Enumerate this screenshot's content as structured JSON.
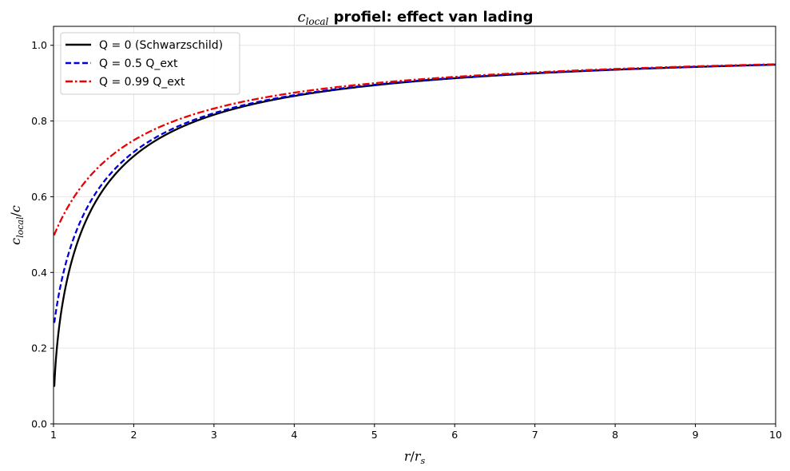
{
  "chart_data": {
    "type": "line",
    "title": {
      "math_main": "c",
      "math_sub": "local",
      "rest": " profiel: effect van lading"
    },
    "xlabel": {
      "main": "r",
      "slash": "/",
      "main2": "r",
      "sub2": "s"
    },
    "ylabel": {
      "main": "c",
      "sub": "local",
      "slash": "/",
      "main2": "c"
    },
    "xlim": [
      1,
      10
    ],
    "ylim": [
      0,
      1.05
    ],
    "xticks": [
      1,
      2,
      3,
      4,
      5,
      6,
      7,
      8,
      9,
      10
    ],
    "yticks": [
      0.0,
      0.2,
      0.4,
      0.6,
      0.8,
      1.0
    ],
    "xtick_labels": [
      "1",
      "2",
      "3",
      "4",
      "5",
      "6",
      "7",
      "8",
      "9",
      "10"
    ],
    "ytick_labels": [
      "0.0",
      "0.2",
      "0.4",
      "0.6",
      "0.8",
      "1.0"
    ],
    "grid": true,
    "legend_position": "upper-left",
    "x_sample": [
      1.0,
      1.01,
      1.02,
      1.05,
      1.1,
      1.2,
      1.3,
      1.5,
      1.75,
      2.0,
      2.5,
      3.0,
      3.5,
      4.0,
      5.0,
      6.0,
      7.0,
      8.0,
      9.0,
      10.0
    ],
    "series": [
      {
        "name": "Q = 0 (Schwarzschild)",
        "color": "#000000",
        "dash": "solid",
        "q_fraction": 0.0,
        "values": [
          0.1,
          0.1,
          0.14,
          0.218,
          0.302,
          0.408,
          0.48,
          0.577,
          0.655,
          0.707,
          0.775,
          0.816,
          0.845,
          0.866,
          0.894,
          0.913,
          0.926,
          0.935,
          0.943,
          0.949
        ]
      },
      {
        "name": "Q = 0.5 Q_ext",
        "color": "#0000dd",
        "dash": "dashed",
        "q_fraction": 0.5,
        "values": [
          0.269,
          0.275,
          0.291,
          0.33,
          0.382,
          0.466,
          0.527,
          0.612,
          0.68,
          0.726,
          0.789,
          0.826,
          0.853,
          0.872,
          0.899,
          0.916,
          0.929,
          0.937,
          0.944,
          0.95
        ]
      },
      {
        "name": "Q = 0.99 Q_ext",
        "color": "#ee0000",
        "dash": "dashdot",
        "q_fraction": 0.99,
        "values": [
          0.5,
          0.505,
          0.51,
          0.523,
          0.545,
          0.584,
          0.619,
          0.67,
          0.72,
          0.753,
          0.808,
          0.84,
          0.863,
          0.879,
          0.904,
          0.92,
          0.932,
          0.94,
          0.946,
          0.952
        ]
      }
    ]
  }
}
